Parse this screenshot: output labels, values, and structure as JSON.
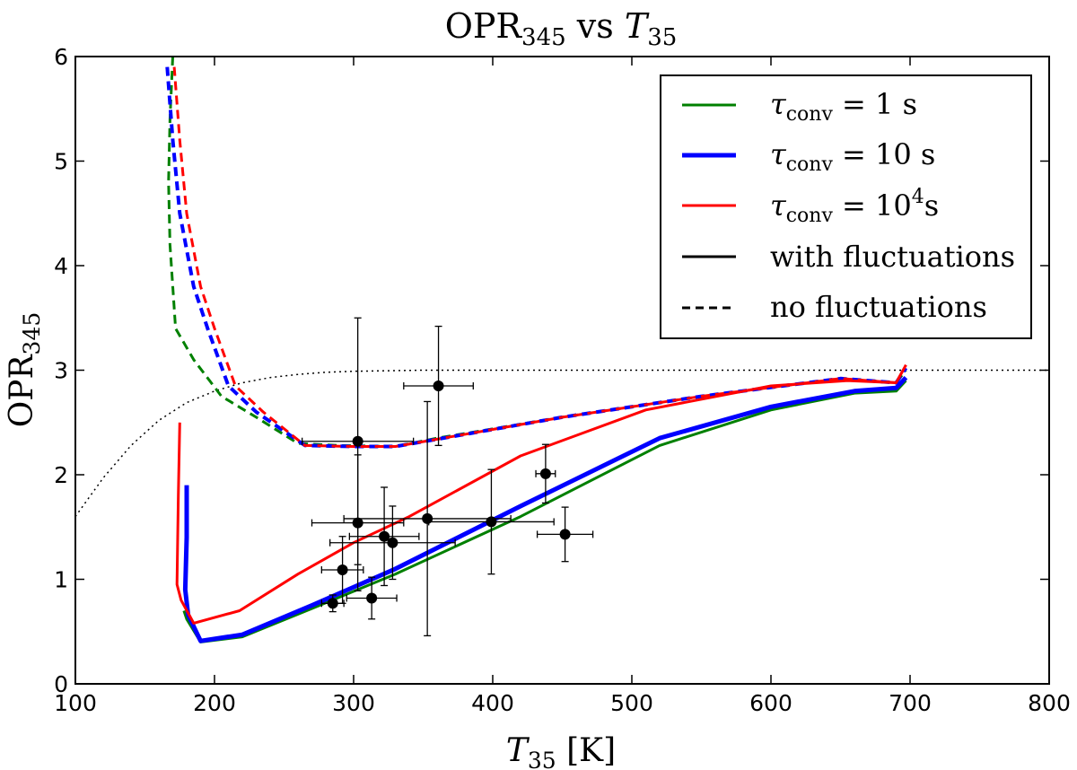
{
  "chart_data": {
    "type": "line",
    "title": {
      "main": "OPR",
      "main_sub": "345",
      "mid": " vs ",
      "var": "T",
      "var_sub": "35"
    },
    "xlabel": {
      "var": "T",
      "sub": "35",
      "unit": " [K]"
    },
    "ylabel": {
      "main": "OPR",
      "sub": "345"
    },
    "xlim": [
      100,
      800
    ],
    "ylim": [
      0,
      6
    ],
    "xticks": [
      100,
      200,
      300,
      400,
      500,
      600,
      700,
      800
    ],
    "yticks": [
      0,
      1,
      2,
      3,
      4,
      5,
      6
    ],
    "grid": false,
    "legend_position": "top-right",
    "colors": {
      "green": "#008000",
      "blue": "#0000ff",
      "red": "#ff0000",
      "black": "#000000"
    },
    "legend": [
      {
        "id": "tau1",
        "var": "τ",
        "sub": "conv",
        "eq": " = 1 s",
        "sup": "",
        "tail": "",
        "color": "#008000",
        "style": "solid",
        "width": 3
      },
      {
        "id": "tau10",
        "var": "τ",
        "sub": "conv",
        "eq": " = 10 s",
        "sup": "",
        "tail": "",
        "color": "#0000ff",
        "style": "solid",
        "width": 5
      },
      {
        "id": "tau1e4",
        "var": "τ",
        "sub": "conv",
        "eq": " = 10",
        "sup": "4",
        "tail": "s",
        "color": "#ff0000",
        "style": "solid",
        "width": 3
      },
      {
        "id": "withfluct",
        "text": "with fluctuations",
        "color": "#000000",
        "style": "solid",
        "width": 3
      },
      {
        "id": "nofluct",
        "text": "no fluctuations",
        "color": "#000000",
        "style": "dashed",
        "width": 3
      }
    ],
    "series": [
      {
        "name": "equilibrium",
        "color": "#000000",
        "style": "dotted",
        "width": 1.5,
        "x": [
          100,
          120,
          140,
          160,
          180,
          200,
          220,
          240,
          260,
          280,
          300,
          350,
          400,
          500,
          600,
          700,
          800
        ],
        "y": [
          1.6,
          1.97,
          2.28,
          2.52,
          2.69,
          2.8,
          2.88,
          2.93,
          2.96,
          2.98,
          2.99,
          3.0,
          3.0,
          3.0,
          3.0,
          3.0,
          3.0
        ]
      },
      {
        "name": "tau_conv=1s no fluctuations",
        "color": "#008000",
        "style": "dashed",
        "width": 3,
        "x": [
          170,
          168,
          167,
          168,
          172,
          185,
          205,
          230,
          260,
          290,
          330,
          360,
          450,
          550,
          650,
          690,
          697
        ],
        "y": [
          6.0,
          5.4,
          4.8,
          4.2,
          3.4,
          3.1,
          2.75,
          2.55,
          2.3,
          2.28,
          2.27,
          2.35,
          2.55,
          2.75,
          2.92,
          2.88,
          3.0
        ]
      },
      {
        "name": "tau_conv=10s no fluctuations",
        "color": "#0000ff",
        "style": "dashed",
        "width": 4,
        "x": [
          166,
          170,
          175,
          185,
          195,
          210,
          230,
          265,
          300,
          330,
          360,
          450,
          550,
          650,
          690,
          697
        ],
        "y": [
          5.9,
          5.2,
          4.5,
          3.8,
          3.4,
          2.85,
          2.6,
          2.28,
          2.27,
          2.27,
          2.34,
          2.55,
          2.75,
          2.92,
          2.88,
          3.02
        ]
      },
      {
        "name": "tau_conv=1e4s no fluctuations",
        "color": "#ff0000",
        "style": "dashed",
        "width": 3,
        "x": [
          171,
          175,
          180,
          190,
          200,
          215,
          235,
          265,
          300,
          330,
          360,
          450,
          550,
          650,
          690,
          697
        ],
        "y": [
          5.9,
          5.2,
          4.5,
          3.8,
          3.4,
          2.85,
          2.6,
          2.28,
          2.27,
          2.27,
          2.34,
          2.55,
          2.75,
          2.92,
          2.88,
          3.05
        ]
      },
      {
        "name": "tau_conv=1s with fluctuations",
        "color": "#008000",
        "style": "solid",
        "width": 3,
        "x": [
          178,
          180,
          190,
          220,
          270,
          330,
          420,
          520,
          600,
          660,
          690,
          697
        ],
        "y": [
          0.7,
          0.62,
          0.4,
          0.45,
          0.72,
          1.05,
          1.6,
          2.28,
          2.62,
          2.78,
          2.8,
          2.9
        ]
      },
      {
        "name": "tau_conv=10s with fluctuations",
        "color": "#0000ff",
        "style": "solid",
        "width": 5,
        "x": [
          180,
          180,
          179,
          181,
          190,
          220,
          270,
          330,
          420,
          520,
          600,
          660,
          690,
          697
        ],
        "y": [
          1.9,
          1.4,
          0.9,
          0.66,
          0.41,
          0.47,
          0.75,
          1.1,
          1.7,
          2.35,
          2.65,
          2.8,
          2.83,
          2.93
        ]
      },
      {
        "name": "tau_conv=1e4s with fluctuations",
        "color": "#ff0000",
        "style": "solid",
        "width": 3,
        "x": [
          175,
          174,
          173,
          176,
          185,
          218,
          260,
          300,
          340,
          420,
          510,
          600,
          655,
          690,
          697
        ],
        "y": [
          2.5,
          1.8,
          0.95,
          0.8,
          0.58,
          0.7,
          1.05,
          1.35,
          1.6,
          2.18,
          2.62,
          2.85,
          2.9,
          2.88,
          3.05
        ]
      }
    ],
    "observations": {
      "color": "#000000",
      "points": [
        {
          "x": 285,
          "y": 0.77,
          "xerr": 8,
          "yerr": 0.08
        },
        {
          "x": 292,
          "y": 1.09,
          "xerr": 15,
          "yerr": 0.32
        },
        {
          "x": 313,
          "y": 0.82,
          "xerr": 18,
          "yerr": 0.2
        },
        {
          "x": 303,
          "y": 1.54,
          "xerr": 33,
          "yerr": 0.65
        },
        {
          "x": 303,
          "y": 2.32,
          "xerr": 40,
          "yerr": 1.18
        },
        {
          "x": 322,
          "y": 1.41,
          "xerr": 25,
          "yerr": 0.47
        },
        {
          "x": 328,
          "y": 1.35,
          "xerr": 45,
          "yerr": 0.35
        },
        {
          "x": 353,
          "y": 1.58,
          "xerr": 60,
          "yerr": 1.12
        },
        {
          "x": 361,
          "y": 2.85,
          "xerr": 25,
          "yerr": 0.57
        },
        {
          "x": 399,
          "y": 1.55,
          "xerr": 45,
          "yerr": 0.5
        },
        {
          "x": 438,
          "y": 2.01,
          "xerr": 7,
          "yerr": 0.28
        },
        {
          "x": 452,
          "y": 1.43,
          "xerr": 20,
          "yerr": 0.26
        }
      ]
    }
  }
}
